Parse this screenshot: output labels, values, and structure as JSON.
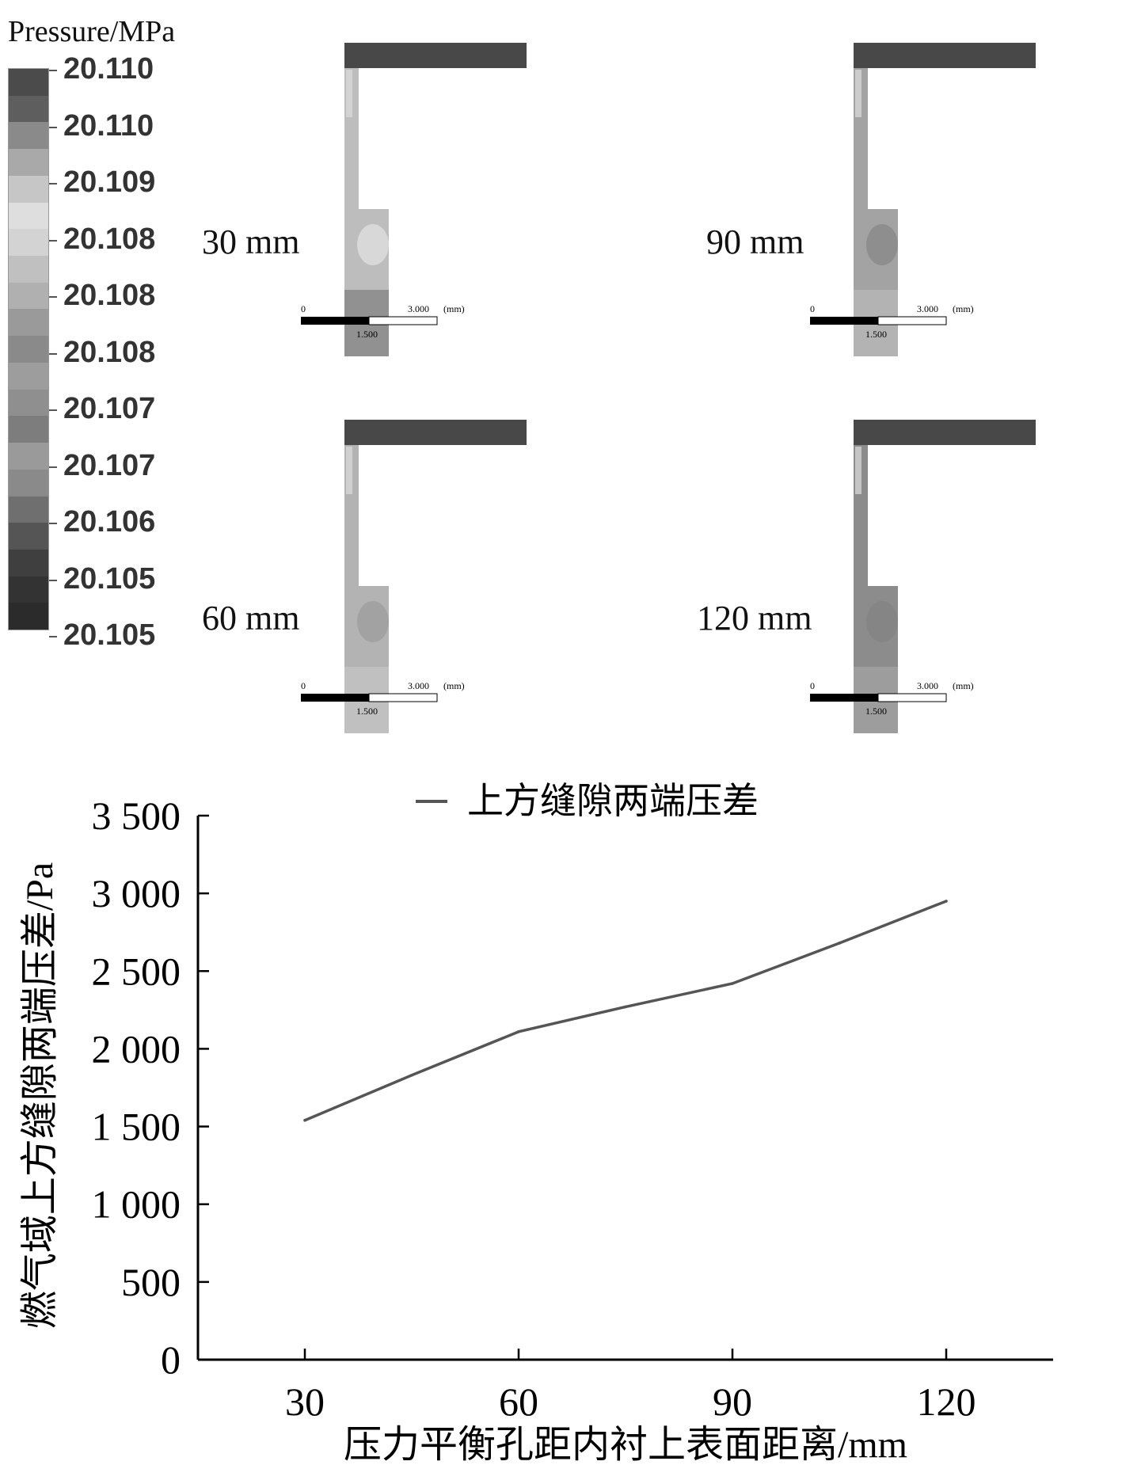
{
  "legend": {
    "title": "Pressure/MPa",
    "values": [
      "20.110",
      "20.110",
      "20.109",
      "20.108",
      "20.108",
      "20.108",
      "20.107",
      "20.107",
      "20.106",
      "20.105",
      "20.105"
    ],
    "colors": [
      "#4b4b4b",
      "#5e5e5e",
      "#8a8a8a",
      "#a9a9a9",
      "#c6c6c6",
      "#dedede",
      "#d3d3d3",
      "#c0c0c0",
      "#b0b0b0",
      "#9a9a9a",
      "#8a8a8a",
      "#9d9d9d",
      "#8f8f8f",
      "#7d7d7d",
      "#9a9a9a",
      "#8a8a8a",
      "#6f6f6f",
      "#555555",
      "#3f3f3f",
      "#333333",
      "#2b2b2b"
    ]
  },
  "panels": [
    {
      "label": "30 mm",
      "body_color": "#bdbdbd",
      "blob_color": "#d8d8d8",
      "bottom_color": "#8a8a8a",
      "scale": {
        "zero": "0",
        "mid": "1.500",
        "end": "3.000",
        "unit": "(mm)"
      }
    },
    {
      "label": "90 mm",
      "body_color": "#a3a3a3",
      "blob_color": "#8e8e8e",
      "bottom_color": "#b6b6b6",
      "scale": {
        "zero": "0",
        "mid": "1.500",
        "end": "3.000",
        "unit": "(mm)"
      }
    },
    {
      "label": "60 mm",
      "body_color": "#b3b3b3",
      "blob_color": "#a2a2a2",
      "bottom_color": "#c2c2c2",
      "scale": {
        "zero": "0",
        "mid": "1.500",
        "end": "3.000",
        "unit": "(mm)"
      }
    },
    {
      "label": "120 mm",
      "body_color": "#8c8c8c",
      "blob_color": "#858585",
      "bottom_color": "#a0a0a0",
      "scale": {
        "zero": "0",
        "mid": "1.500",
        "end": "3.000",
        "unit": "(mm)"
      }
    }
  ],
  "chart_data": {
    "type": "line",
    "x": [
      30,
      45,
      60,
      75,
      90,
      105,
      120
    ],
    "series": [
      {
        "name": "上方缝隙两端压差",
        "values": [
          1540,
          1830,
          2110,
          2270,
          2420,
          2680,
          2950
        ],
        "color": "#555555"
      }
    ],
    "xlabel": "压力平衡孔距内衬上表面距离/mm",
    "ylabel": "燃气域上方缝隙两端压差/Pa",
    "xticks": [
      30,
      60,
      90,
      120
    ],
    "xtick_labels": [
      "30",
      "60",
      "90",
      "120"
    ],
    "yticks": [
      0,
      500,
      1000,
      1500,
      2000,
      2500,
      3000,
      3500
    ],
    "ytick_labels": [
      "0",
      "500",
      "1 000",
      "1 500",
      "2 000",
      "2 500",
      "3 000",
      "3 500"
    ],
    "xlim": [
      15,
      135
    ],
    "ylim": [
      0,
      3500
    ],
    "grid": false,
    "legend_position": "top-center"
  }
}
